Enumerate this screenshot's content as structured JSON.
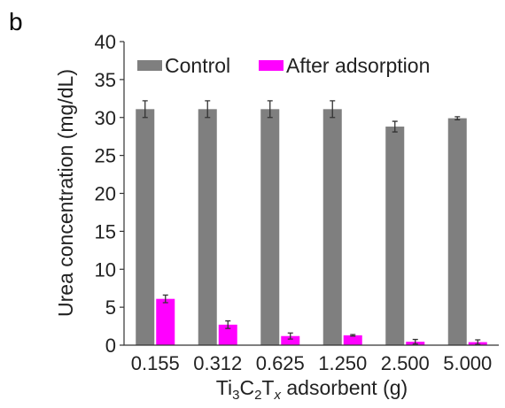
{
  "panel_label": "b",
  "chart_data": {
    "type": "bar",
    "xlabel_parts": {
      "base": "Ti",
      "s1": "3",
      "mid": "C",
      "s2": "2",
      "t": "T",
      "sx": "x",
      "rest": " adsorbent (g)"
    },
    "ylabel": "Urea concentration (mg/dL)",
    "categories": [
      "0.155",
      "0.312",
      "0.625",
      "1.250",
      "2.500",
      "5.000"
    ],
    "ylim": [
      0,
      40
    ],
    "yticks": [
      "0",
      "5",
      "10",
      "15",
      "20",
      "25",
      "30",
      "35",
      "40"
    ],
    "legend_position": "top",
    "series": [
      {
        "name": "Control",
        "color": "#7f7f7f",
        "values": [
          31.1,
          31.1,
          31.1,
          31.1,
          28.8,
          29.9
        ],
        "errors": [
          1.1,
          1.1,
          1.1,
          1.1,
          0.7,
          0.2
        ]
      },
      {
        "name": "After adsorption",
        "color": "#ff00ff",
        "values": [
          6.1,
          2.7,
          1.2,
          1.3,
          0.45,
          0.4
        ],
        "errors": [
          0.5,
          0.5,
          0.4,
          0.1,
          0.3,
          0.3
        ]
      }
    ]
  }
}
